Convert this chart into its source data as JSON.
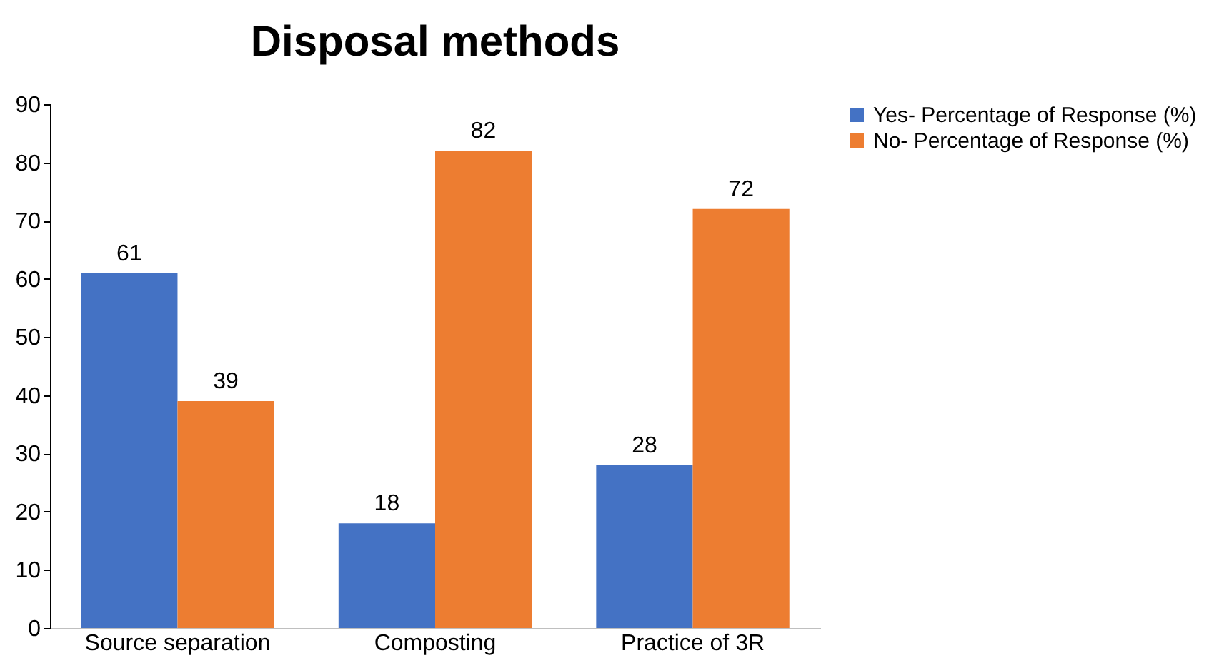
{
  "chart_data": {
    "type": "bar",
    "title": "Disposal methods",
    "categories": [
      "Source separation",
      "Composting",
      "Practice of 3R"
    ],
    "series": [
      {
        "name": "Yes- Percentage of Response (%)",
        "color": "#4472c4",
        "values": [
          61,
          18,
          28
        ]
      },
      {
        "name": "No- Percentage of Response (%)",
        "color": "#ed7d31",
        "values": [
          39,
          82,
          72
        ]
      }
    ],
    "ylim": [
      0,
      90
    ],
    "yticks": [
      0,
      10,
      20,
      30,
      40,
      50,
      60,
      70,
      80,
      90
    ],
    "grid": false,
    "legend": "right",
    "data_labels": true
  }
}
